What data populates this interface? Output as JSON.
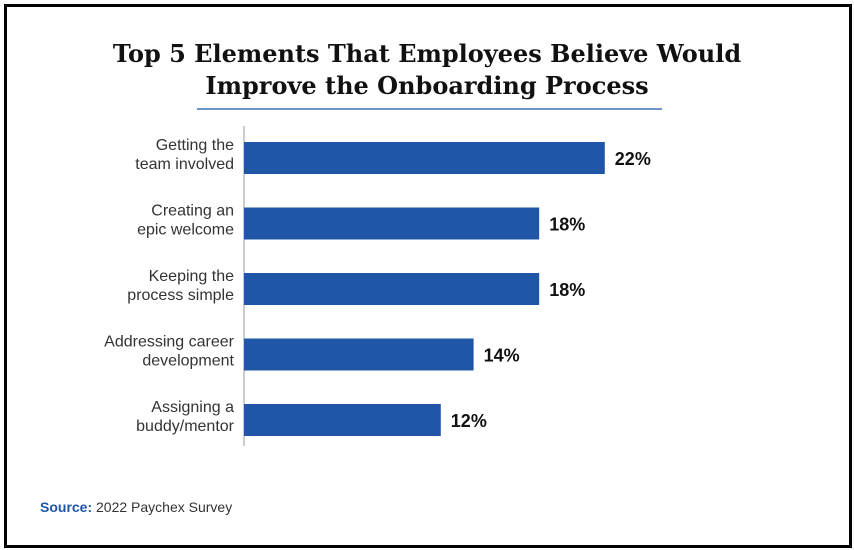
{
  "chart_data": {
    "type": "bar",
    "orientation": "horizontal",
    "title": "Top 5 Elements That Employees Believe Would Improve the Onboarding Process",
    "title_lines": [
      "Top 5 Elements That Employees Believe Would",
      "Improve the Onboarding Process"
    ],
    "categories": [
      [
        "Getting the",
        "team involved"
      ],
      [
        "Creating an",
        "epic welcome"
      ],
      [
        "Keeping the",
        "process simple"
      ],
      [
        "Addressing career",
        "development"
      ],
      [
        "Assigning a",
        "buddy/mentor"
      ]
    ],
    "values": [
      22,
      18,
      18,
      14,
      12
    ],
    "value_labels": [
      "22%",
      "18%",
      "18%",
      "14%",
      "12%"
    ],
    "unit": "%",
    "bar_color": "#1f56a8",
    "grid": false,
    "legend": "none"
  },
  "source": {
    "key": "Source:",
    "text": " 2022 Paychex Survey"
  },
  "colors": {
    "bar": "#1f56a8",
    "source_key": "#1f56a8",
    "title_rule": "#6f94c8"
  }
}
